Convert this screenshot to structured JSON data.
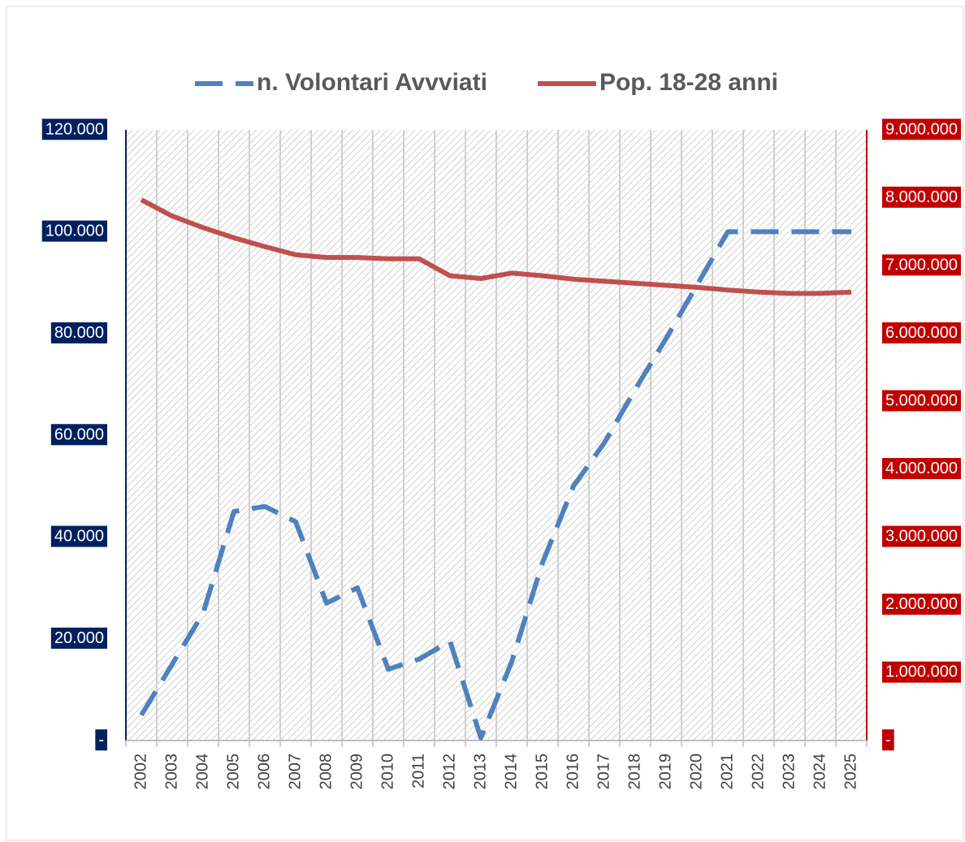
{
  "chart_data": {
    "type": "line",
    "categories": [
      "2002",
      "2003",
      "2004",
      "2005",
      "2006",
      "2007",
      "2008",
      "2009",
      "2010",
      "2011",
      "2012",
      "2013",
      "2014",
      "2015",
      "2016",
      "2017",
      "2018",
      "2019",
      "2020",
      "2021",
      "2022",
      "2023",
      "2024",
      "2025"
    ],
    "series": [
      {
        "name": "n. Volontari Avvviati",
        "color": "#4f81bd",
        "style": "dashed",
        "values": [
          5000,
          15000,
          25000,
          45000,
          46000,
          43000,
          27000,
          30000,
          14000,
          16000,
          19500,
          500,
          15500,
          35000,
          50000,
          58500,
          69000,
          79000,
          89500,
          100000,
          100000,
          100000,
          100000,
          100000
        ]
      },
      {
        "name": "Pop. 18-28 anni",
        "color": "#c0504d",
        "style": "solid",
        "axis": "y2",
        "values": [
          7970000,
          7730000,
          7560000,
          7410000,
          7280000,
          7160000,
          7120000,
          7120000,
          7100000,
          7100000,
          6850000,
          6810000,
          6890000,
          6850000,
          6800000,
          6770000,
          6740000,
          6710000,
          6680000,
          6640000,
          6610000,
          6590000,
          6590000,
          6610000
        ]
      }
    ],
    "ylim": [
      0,
      120000
    ],
    "yticks": [
      {
        "value": 0,
        "label": "-"
      },
      {
        "value": 20000,
        "label": "20.000"
      },
      {
        "value": 40000,
        "label": "40.000"
      },
      {
        "value": 60000,
        "label": "60.000"
      },
      {
        "value": 80000,
        "label": "80.000"
      },
      {
        "value": 100000,
        "label": "100.000"
      },
      {
        "value": 120000,
        "label": "120.000"
      }
    ],
    "y2lim": [
      0,
      9000000
    ],
    "y2ticks": [
      {
        "value": 0,
        "label": "-"
      },
      {
        "value": 1000000,
        "label": "1.000.000"
      },
      {
        "value": 2000000,
        "label": "2.000.000"
      },
      {
        "value": 3000000,
        "label": "3.000.000"
      },
      {
        "value": 4000000,
        "label": "4.000.000"
      },
      {
        "value": 5000000,
        "label": "5.000.000"
      },
      {
        "value": 6000000,
        "label": "6.000.000"
      },
      {
        "value": 7000000,
        "label": "7.000.000"
      },
      {
        "value": 8000000,
        "label": "8.000.000"
      },
      {
        "value": 9000000,
        "label": "9.000.000"
      }
    ],
    "ytick_color": "#002060",
    "y2tick_color": "#c00000",
    "legend": "top"
  }
}
